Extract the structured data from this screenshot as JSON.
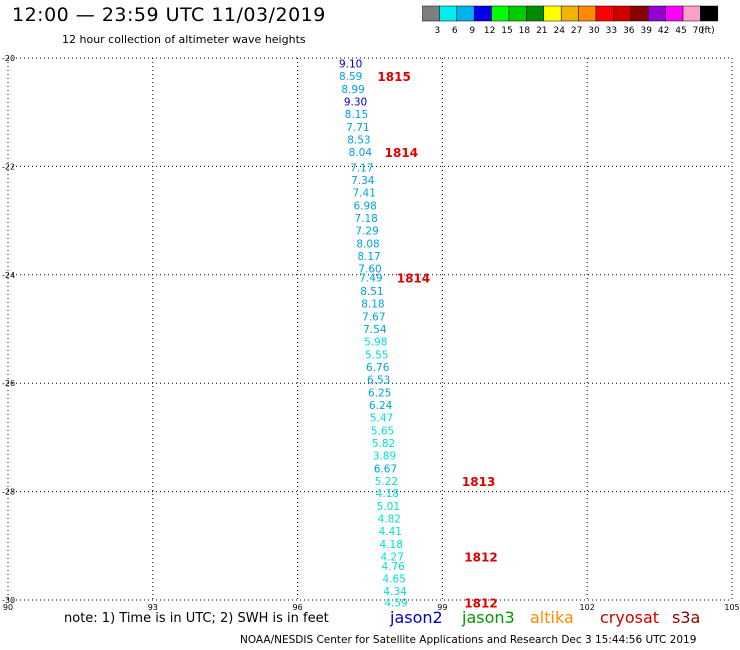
{
  "header": {
    "title": "12:00 — 23:59 UTC 11/03/2019",
    "subtitle": "12 hour collection of altimeter wave heights"
  },
  "colorbar": {
    "colors": [
      "#7f7f7f",
      "#00eeee",
      "#00b2ee",
      "#0000ee",
      "#00ff00",
      "#00cd00",
      "#008b00",
      "#ffff00",
      "#eeb400",
      "#ff8c00",
      "#ff0000",
      "#cd0000",
      "#8b0000",
      "#9400d3",
      "#ff00ff",
      "#ff9ecb",
      "#000000"
    ],
    "tick_labels": [
      "3",
      "6",
      "9",
      "12",
      "15",
      "18",
      "21",
      "24",
      "27",
      "30",
      "33",
      "36",
      "39",
      "42",
      "45",
      "70",
      "(ft)"
    ]
  },
  "footer": {
    "note": "note: 1) Time is in UTC; 2) SWH is in feet",
    "credit": "NOAA/NESDIS Center for Satellite Applications and Research    Dec  3 15:44:56 UTC 2019",
    "satellites": [
      {
        "name": "jason2",
        "color": "#0000cc"
      },
      {
        "name": "jason3",
        "color": "#009900"
      },
      {
        "name": "altika",
        "color": "#ff8c00"
      },
      {
        "name": "cryosat",
        "color": "#cc0000"
      },
      {
        "name": "s3a",
        "color": "#8b0000"
      }
    ]
  },
  "chart_data": {
    "type": "scatter",
    "xlim": [
      90,
      105
    ],
    "ylim": [
      -30,
      -20
    ],
    "x_ticks": [
      "90",
      "93",
      "96",
      "99",
      "102",
      "105"
    ],
    "y_ticks": [
      "-20",
      "-22",
      "-24",
      "-26",
      "-28",
      "-30"
    ],
    "grid": true,
    "points": [
      {
        "lon": 97.1,
        "lat": -20.1,
        "v": "9.10",
        "c": "#0000cc"
      },
      {
        "lon": 97.1,
        "lat": -20.33,
        "v": "8.59",
        "c": "#00a0e0"
      },
      {
        "lon": 97.15,
        "lat": -20.57,
        "v": "8.99",
        "c": "#00a0e0"
      },
      {
        "lon": 97.2,
        "lat": -20.8,
        "v": "9.30",
        "c": "#0000cc"
      },
      {
        "lon": 97.22,
        "lat": -21.03,
        "v": "8.15",
        "c": "#00a0e0"
      },
      {
        "lon": 97.25,
        "lat": -21.27,
        "v": "7.71",
        "c": "#00a0e0"
      },
      {
        "lon": 97.27,
        "lat": -21.5,
        "v": "8.53",
        "c": "#00a0e0"
      },
      {
        "lon": 97.3,
        "lat": -21.73,
        "v": "8.04",
        "c": "#00a0e0"
      },
      {
        "lon": 97.33,
        "lat": -22.02,
        "v": "7.17",
        "c": "#00a0e0"
      },
      {
        "lon": 97.35,
        "lat": -22.25,
        "v": "7.34",
        "c": "#00a0e0"
      },
      {
        "lon": 97.38,
        "lat": -22.48,
        "v": "7.41",
        "c": "#00a0e0"
      },
      {
        "lon": 97.4,
        "lat": -22.72,
        "v": "6.98",
        "c": "#00a0e0"
      },
      {
        "lon": 97.42,
        "lat": -22.95,
        "v": "7.18",
        "c": "#00a0e0"
      },
      {
        "lon": 97.44,
        "lat": -23.18,
        "v": "7.29",
        "c": "#00a0e0"
      },
      {
        "lon": 97.46,
        "lat": -23.42,
        "v": "8.08",
        "c": "#00a0e0"
      },
      {
        "lon": 97.48,
        "lat": -23.65,
        "v": "8.17",
        "c": "#00a0e0"
      },
      {
        "lon": 97.5,
        "lat": -23.88,
        "v": "7.60",
        "c": "#00a0e0"
      },
      {
        "lon": 97.52,
        "lat": -24.05,
        "v": "7.49",
        "c": "#00a0e0"
      },
      {
        "lon": 97.54,
        "lat": -24.3,
        "v": "8.51",
        "c": "#00a0e0"
      },
      {
        "lon": 97.56,
        "lat": -24.53,
        "v": "8.18",
        "c": "#00a0e0"
      },
      {
        "lon": 97.58,
        "lat": -24.77,
        "v": "7.67",
        "c": "#00a0e0"
      },
      {
        "lon": 97.6,
        "lat": -25.0,
        "v": "7.54",
        "c": "#00a0e0"
      },
      {
        "lon": 97.62,
        "lat": -25.23,
        "v": "5.98",
        "c": "#00dddd"
      },
      {
        "lon": 97.64,
        "lat": -25.47,
        "v": "5.55",
        "c": "#00dddd"
      },
      {
        "lon": 97.66,
        "lat": -25.7,
        "v": "6.76",
        "c": "#00a0e0"
      },
      {
        "lon": 97.68,
        "lat": -25.93,
        "v": "6.53",
        "c": "#00a0e0"
      },
      {
        "lon": 97.7,
        "lat": -26.17,
        "v": "6.25",
        "c": "#00a0e0"
      },
      {
        "lon": 97.72,
        "lat": -26.4,
        "v": "6.24",
        "c": "#00a0e0"
      },
      {
        "lon": 97.74,
        "lat": -26.63,
        "v": "5.47",
        "c": "#00dddd"
      },
      {
        "lon": 97.76,
        "lat": -26.87,
        "v": "5.65",
        "c": "#00dddd"
      },
      {
        "lon": 97.78,
        "lat": -27.1,
        "v": "5.82",
        "c": "#00dddd"
      },
      {
        "lon": 97.8,
        "lat": -27.33,
        "v": "3.89",
        "c": "#00dddd"
      },
      {
        "lon": 97.82,
        "lat": -27.57,
        "v": "6.67",
        "c": "#00a0e0"
      },
      {
        "lon": 97.84,
        "lat": -27.8,
        "v": "5.22",
        "c": "#00dddd"
      },
      {
        "lon": 97.86,
        "lat": -28.03,
        "v": "4.18",
        "c": "#00dddd"
      },
      {
        "lon": 97.88,
        "lat": -28.27,
        "v": "5.01",
        "c": "#00dddd"
      },
      {
        "lon": 97.9,
        "lat": -28.5,
        "v": "4.82",
        "c": "#00dddd"
      },
      {
        "lon": 97.92,
        "lat": -28.73,
        "v": "4.41",
        "c": "#00dddd"
      },
      {
        "lon": 97.94,
        "lat": -28.97,
        "v": "4.18",
        "c": "#00dddd"
      },
      {
        "lon": 97.96,
        "lat": -29.2,
        "v": "4.27",
        "c": "#00dddd"
      },
      {
        "lon": 97.98,
        "lat": -29.37,
        "v": "4.76",
        "c": "#00dddd"
      },
      {
        "lon": 98.0,
        "lat": -29.6,
        "v": "4.65",
        "c": "#00dddd"
      },
      {
        "lon": 98.02,
        "lat": -29.83,
        "v": "4.34",
        "c": "#00dddd"
      },
      {
        "lon": 98.04,
        "lat": -30.05,
        "v": "4.59",
        "c": "#00dddd"
      }
    ],
    "annotations": [
      {
        "lon": 98.0,
        "lat": -20.33,
        "text": "1815",
        "c": "#e00000"
      },
      {
        "lon": 98.15,
        "lat": -21.73,
        "text": "1814",
        "c": "#e00000"
      },
      {
        "lon": 98.4,
        "lat": -24.05,
        "text": "1814",
        "c": "#e00000"
      },
      {
        "lon": 99.75,
        "lat": -27.8,
        "text": "1813",
        "c": "#e00000"
      },
      {
        "lon": 99.8,
        "lat": -29.2,
        "text": "1812",
        "c": "#e00000"
      },
      {
        "lon": 99.8,
        "lat": -30.05,
        "text": "1812",
        "c": "#e00000"
      }
    ]
  }
}
